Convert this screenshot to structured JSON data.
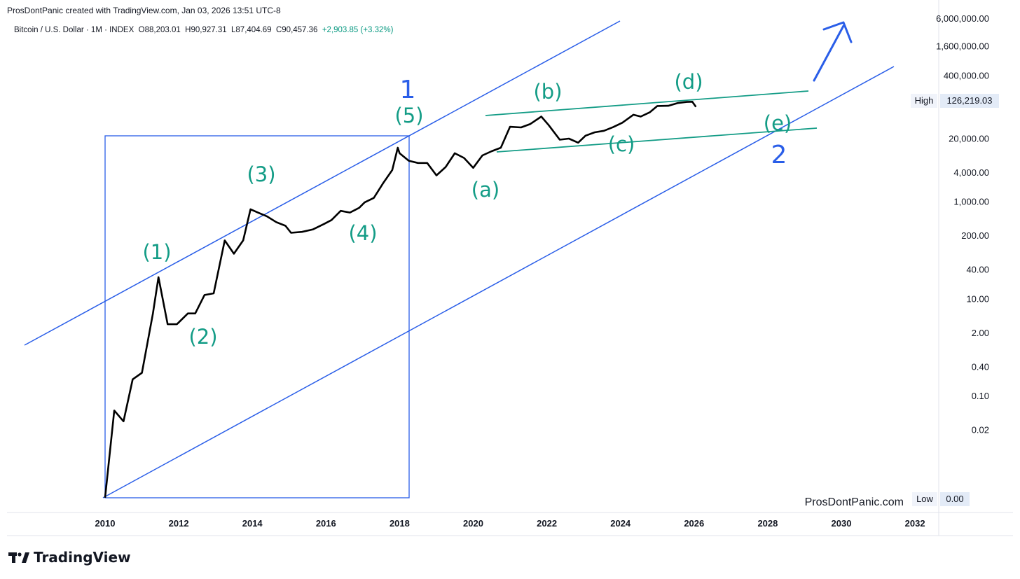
{
  "header": {
    "credit": "ProsDontPanic created with TradingView.com, Jan 03, 2026 13:51 UTC-8",
    "symbol": "Bitcoin / U.S. Dollar · 1M · INDEX",
    "open": "O88,203.01",
    "high": "H90,927.31",
    "low": "L87,404.69",
    "close": "C90,457.36",
    "change": "+2,903.85 (+3.32%)"
  },
  "footer": {
    "brand": "TradingView",
    "watermark": "ProsDontPanic.com"
  },
  "colors": {
    "price": "#000000",
    "channel": "#2a5ee8",
    "triangle": "#139c86",
    "grid": "#e0e3eb"
  },
  "chart_data": {
    "type": "line",
    "scale": "log",
    "grid": false,
    "x_ticks": [
      "2010",
      "2012",
      "2014",
      "2016",
      "2018",
      "2020",
      "2022",
      "2024",
      "2026",
      "2028",
      "2030",
      "2032"
    ],
    "y_ticks": [
      {
        "label": "0.02",
        "value": 0.02
      },
      {
        "label": "0.10",
        "value": 0.1
      },
      {
        "label": "0.40",
        "value": 0.4
      },
      {
        "label": "2.00",
        "value": 2
      },
      {
        "label": "10.00",
        "value": 10
      },
      {
        "label": "40.00",
        "value": 40
      },
      {
        "label": "200.00",
        "value": 200
      },
      {
        "label": "1,000.00",
        "value": 1000
      },
      {
        "label": "4,000.00",
        "value": 4000
      },
      {
        "label": "20,000.00",
        "value": 20000
      },
      {
        "label": "400,000.00",
        "value": 400000
      },
      {
        "label": "1,600,000.00",
        "value": 1600000
      },
      {
        "label": "6,000,000.00",
        "value": 6000000
      }
    ],
    "high_label": {
      "text": "High",
      "value": "126,219.03"
    },
    "low_label": {
      "text": "Low",
      "value": "0.00"
    },
    "series": [
      {
        "points": [
          [
            2010.0,
            0.0008
          ],
          [
            2010.25,
            0.05
          ],
          [
            2010.5,
            0.03
          ],
          [
            2010.75,
            0.22
          ],
          [
            2011.0,
            0.3
          ],
          [
            2011.3,
            5
          ],
          [
            2011.45,
            28
          ],
          [
            2011.7,
            3
          ],
          [
            2011.95,
            3
          ],
          [
            2012.25,
            5
          ],
          [
            2012.45,
            5
          ],
          [
            2012.7,
            12
          ],
          [
            2012.95,
            13
          ],
          [
            2013.25,
            160
          ],
          [
            2013.5,
            85
          ],
          [
            2013.75,
            160
          ],
          [
            2013.95,
            700
          ],
          [
            2014.15,
            600
          ],
          [
            2014.4,
            500
          ],
          [
            2014.65,
            380
          ],
          [
            2014.9,
            320
          ],
          [
            2015.05,
            230
          ],
          [
            2015.35,
            240
          ],
          [
            2015.65,
            270
          ],
          [
            2015.95,
            350
          ],
          [
            2016.15,
            420
          ],
          [
            2016.4,
            650
          ],
          [
            2016.65,
            600
          ],
          [
            2016.9,
            750
          ],
          [
            2017.05,
            970
          ],
          [
            2017.3,
            1200
          ],
          [
            2017.55,
            2400
          ],
          [
            2017.8,
            4500
          ],
          [
            2017.95,
            13000
          ],
          [
            2018.0,
            10000
          ],
          [
            2018.25,
            7000
          ],
          [
            2018.5,
            6300
          ],
          [
            2018.75,
            6300
          ],
          [
            2019.0,
            3500
          ],
          [
            2019.25,
            5200
          ],
          [
            2019.5,
            10000
          ],
          [
            2019.75,
            8000
          ],
          [
            2020.0,
            5000
          ],
          [
            2020.25,
            9000
          ],
          [
            2020.5,
            11000
          ],
          [
            2020.75,
            13000
          ],
          [
            2021.0,
            35000
          ],
          [
            2021.3,
            34000
          ],
          [
            2021.55,
            40000
          ],
          [
            2021.85,
            57000
          ],
          [
            2022.05,
            38000
          ],
          [
            2022.35,
            19000
          ],
          [
            2022.6,
            20000
          ],
          [
            2022.85,
            16500
          ],
          [
            2023.05,
            23000
          ],
          [
            2023.3,
            27000
          ],
          [
            2023.55,
            29000
          ],
          [
            2023.8,
            34500
          ],
          [
            2024.05,
            42500
          ],
          [
            2024.35,
            62000
          ],
          [
            2024.55,
            57000
          ],
          [
            2024.8,
            70000
          ],
          [
            2025.0,
            94000
          ],
          [
            2025.3,
            95000
          ],
          [
            2025.55,
            108000
          ],
          [
            2025.8,
            114000
          ],
          [
            2025.95,
            115000
          ],
          [
            2026.05,
            90457
          ]
        ]
      }
    ],
    "annotations": [
      {
        "text": "(1)"
      },
      {
        "text": "(2)"
      },
      {
        "text": "(3)"
      },
      {
        "text": "(4)"
      },
      {
        "text": "(5)"
      },
      {
        "text": "(a)"
      },
      {
        "text": "(b)"
      },
      {
        "text": "(c)"
      },
      {
        "text": "(d)"
      },
      {
        "text": "(e)"
      },
      {
        "text": "1"
      },
      {
        "text": "2"
      }
    ]
  }
}
